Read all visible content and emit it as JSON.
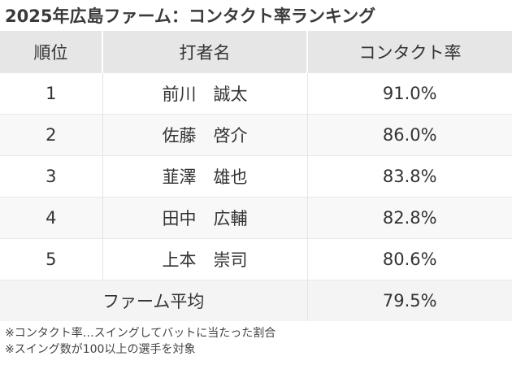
{
  "title": "2025年広島ファーム：コンタクト率ランキング",
  "table": {
    "headers": [
      "順位",
      "打者名",
      "コンタクト率"
    ],
    "rows": [
      {
        "rank": "1",
        "name": "前川　誠太",
        "rate": "91.0%"
      },
      {
        "rank": "2",
        "name": "佐藤　啓介",
        "rate": "86.0%"
      },
      {
        "rank": "3",
        "name": "韮澤　雄也",
        "rate": "83.8%"
      },
      {
        "rank": "4",
        "name": "田中　広輔",
        "rate": "82.8%"
      },
      {
        "rank": "5",
        "name": "上本　崇司",
        "rate": "80.6%"
      }
    ],
    "average": {
      "label": "ファーム平均",
      "rate": "79.5%"
    }
  },
  "notes": [
    "※コンタクト率…スイングしてバットに当たった割合",
    "※スイング数が100以上の選手を対象"
  ]
}
